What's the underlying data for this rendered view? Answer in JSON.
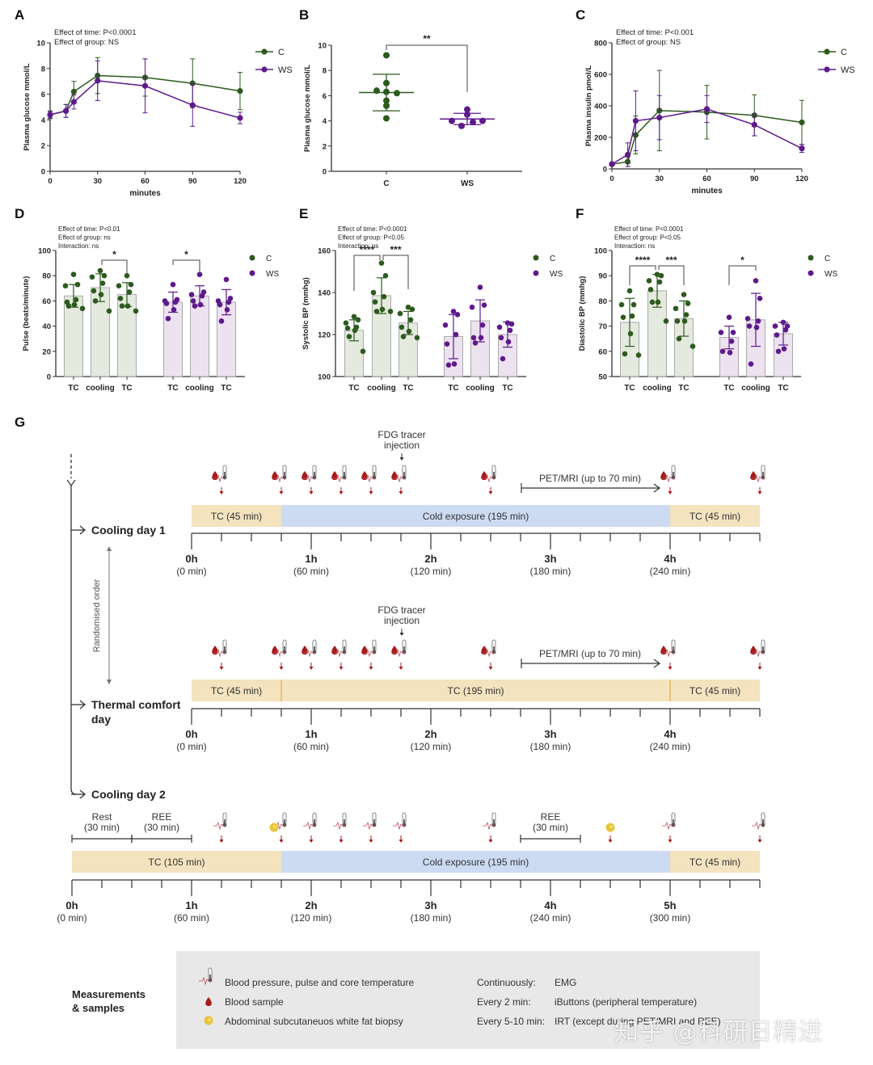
{
  "colors": {
    "C": "#2d5a1e",
    "WS": "#5e1a8c",
    "C_bar_fill": "#e4eade",
    "WS_bar_fill": "#ece2f0",
    "tc_band": "#f3e3bf",
    "cold_band": "#ccdbf2",
    "blood": "#a61b1b",
    "biopsy": "#e8c43a",
    "legend_box": "#e8e8e8"
  },
  "chart_data": [
    {
      "panel": "A",
      "type": "line",
      "annotations": [
        "Effect of time: P<0.0001",
        "Effect of group: NS"
      ],
      "xlabel": "minutes",
      "ylabel": "Plasma glucose mmol/L",
      "x": [
        0,
        10,
        15,
        30,
        60,
        90,
        120
      ],
      "xticks": [
        0,
        30,
        60,
        90,
        120
      ],
      "yticks": [
        0,
        2,
        4,
        6,
        8,
        10
      ],
      "ylim": [
        0,
        10
      ],
      "xlim": [
        0,
        120
      ],
      "legend": "right",
      "series": [
        {
          "name": "C",
          "values": [
            4.4,
            4.7,
            6.2,
            7.45,
            7.3,
            6.85,
            6.25
          ],
          "err": [
            0.3,
            0.5,
            0.8,
            1.4,
            1.45,
            1.9,
            1.45
          ]
        },
        {
          "name": "WS",
          "values": [
            4.4,
            4.7,
            5.4,
            7.05,
            6.65,
            5.15,
            4.15
          ],
          "err": [
            0.25,
            0.5,
            0.55,
            1.55,
            2.1,
            1.65,
            0.45
          ]
        }
      ]
    },
    {
      "panel": "B",
      "type": "scatter",
      "ylabel": "Plasma glucose mmol/L",
      "categories": [
        "C",
        "WS"
      ],
      "yticks": [
        0,
        2,
        4,
        6,
        8,
        10
      ],
      "ylim": [
        0,
        10
      ],
      "significance": "**",
      "series": [
        {
          "name": "C",
          "points": [
            9.2,
            7.0,
            6.4,
            6.3,
            6.2,
            5.6,
            5.2,
            4.2
          ],
          "mean": 6.25,
          "sd": 1.45
        },
        {
          "name": "WS",
          "points": [
            4.9,
            4.5,
            4.0,
            4.0,
            3.9,
            3.6
          ],
          "mean": 4.15,
          "sd": 0.45
        }
      ]
    },
    {
      "panel": "C",
      "type": "line",
      "annotations": [
        "Effect of time: P<0.001",
        "Effect of group: NS"
      ],
      "xlabel": "minutes",
      "ylabel": "Plasma insulin pmol/L",
      "x": [
        0,
        10,
        15,
        30,
        60,
        90,
        120
      ],
      "xticks": [
        0,
        30,
        60,
        90,
        120
      ],
      "yticks": [
        0,
        200,
        400,
        600,
        800
      ],
      "ylim": [
        0,
        800
      ],
      "xlim": [
        0,
        120
      ],
      "legend": "right",
      "series": [
        {
          "name": "C",
          "values": [
            30,
            45,
            215,
            370,
            360,
            340,
            295
          ],
          "err": [
            10,
            30,
            120,
            255,
            170,
            130,
            140
          ]
        },
        {
          "name": "WS",
          "values": [
            30,
            90,
            305,
            325,
            380,
            280,
            130
          ],
          "err": [
            10,
            75,
            190,
            140,
            85,
            70,
            25
          ]
        }
      ]
    },
    {
      "panel": "D",
      "type": "bar",
      "annotations": [
        "Effect of time: P<0.01",
        "Effect of group: ns",
        "Interaction: ns"
      ],
      "ylabel": "Pulse (beats/minute)",
      "categories": [
        "TC",
        "cooling",
        "TC",
        "TC",
        "cooling",
        "TC"
      ],
      "yticks": [
        0,
        20,
        40,
        60,
        80,
        100
      ],
      "ylim": [
        0,
        100
      ],
      "legend": "right",
      "significance": [
        {
          "from": 1,
          "to": 2,
          "label": "*"
        },
        {
          "from": 3,
          "to": 4,
          "label": "*"
        }
      ],
      "series": [
        {
          "name": "C",
          "bars": [
            {
              "mean": 64,
              "sd": 9,
              "points": [
                81,
                73,
                72,
                61,
                59,
                57,
                56,
                54
              ]
            },
            {
              "mean": 70.5,
              "sd": 11,
              "points": [
                84,
                80,
                79,
                74,
                68,
                65,
                60,
                52
              ]
            },
            {
              "mean": 65,
              "sd": 9.5,
              "points": [
                80,
                73,
                72,
                67,
                62,
                56,
                56,
                52
              ]
            }
          ]
        },
        {
          "name": "WS",
          "bars": [
            {
              "mean": 59,
              "sd": 8,
              "points": [
                73,
                61,
                60,
                59,
                58,
                53,
                46
              ]
            },
            {
              "mean": 64,
              "sd": 8,
              "points": [
                81,
                67,
                65,
                64,
                60,
                57,
                56
              ]
            },
            {
              "mean": 59,
              "sd": 10,
              "points": [
                77,
                62,
                60,
                59,
                57,
                53,
                44
              ]
            }
          ]
        }
      ]
    },
    {
      "panel": "E",
      "type": "bar",
      "annotations": [
        "Effect of time: P<0.0001",
        "Effect of group: P<0.05",
        "Interaction: ns"
      ],
      "ylabel": "Systolic BP (mmhg)",
      "categories": [
        "TC",
        "cooling",
        "TC",
        "TC",
        "cooling",
        "TC"
      ],
      "yticks": [
        100,
        120,
        140,
        160
      ],
      "ylim": [
        100,
        160
      ],
      "legend": "right",
      "significance": [
        {
          "from": 0,
          "to": 1,
          "label": "****"
        },
        {
          "from": 1,
          "to": 2,
          "label": "***"
        }
      ],
      "series": [
        {
          "name": "C",
          "bars": [
            {
              "mean": 122,
              "sd": 5,
              "points": [
                128.5,
                127,
                125.5,
                123.5,
                123,
                122,
                119,
                112
              ]
            },
            {
              "mean": 138.5,
              "sd": 8.5,
              "points": [
                154,
                148,
                140,
                138,
                135.5,
                132,
                131,
                131
              ]
            },
            {
              "mean": 125.5,
              "sd": 5.5,
              "points": [
                133,
                132,
                130,
                127,
                123.5,
                121.5,
                119,
                118.5
              ]
            }
          ]
        },
        {
          "name": "WS",
          "bars": [
            {
              "mean": 119,
              "sd": 10.5,
              "points": [
                131,
                129.5,
                124.5,
                120,
                115.5,
                106,
                105.5
              ]
            },
            {
              "mean": 126.5,
              "sd": 10,
              "points": [
                142.5,
                134,
                133,
                124.5,
                118.5,
                118.5,
                116
              ]
            },
            {
              "mean": 120,
              "sd": 6,
              "points": [
                125.5,
                125,
                123.5,
                122,
                118.5,
                116.5,
                108.5
              ]
            }
          ]
        }
      ]
    },
    {
      "panel": "F",
      "type": "bar",
      "annotations": [
        "Effect of time: P<0.0001",
        "Effect of group: P<0.05",
        "Interaction: ns"
      ],
      "ylabel": "Diastolic BP (mmhg)",
      "categories": [
        "TC",
        "cooling",
        "TC",
        "TC",
        "cooling",
        "TC"
      ],
      "yticks": [
        50,
        60,
        70,
        80,
        90,
        100
      ],
      "ylim": [
        50,
        100
      ],
      "legend": "right",
      "significance": [
        {
          "from": 0,
          "to": 1,
          "label": "****"
        },
        {
          "from": 1,
          "to": 2,
          "label": "***"
        },
        {
          "from": 3,
          "to": 4,
          "label": "*"
        }
      ],
      "series": [
        {
          "name": "C",
          "bars": [
            {
              "mean": 71.5,
              "sd": 9.5,
              "points": [
                84,
                78.5,
                78.5,
                74,
                73.5,
                67,
                59,
                58.5
              ]
            },
            {
              "mean": 84,
              "sd": 6.5,
              "points": [
                90.5,
                90,
                88,
                87.5,
                84.5,
                79.5,
                79.5,
                72
              ]
            },
            {
              "mean": 73,
              "sd": 7,
              "points": [
                82.5,
                79,
                77,
                74.5,
                72,
                72,
                65,
                62
              ]
            }
          ]
        },
        {
          "name": "WS",
          "bars": [
            {
              "mean": 65.5,
              "sd": 4.5,
              "points": [
                73.5,
                67.5,
                67.5,
                64,
                60,
                59.5
              ]
            },
            {
              "mean": 72.5,
              "sd": 10.5,
              "points": [
                88,
                81,
                73,
                72,
                70,
                69.5,
                55
              ]
            },
            {
              "mean": 67,
              "sd": 4.5,
              "points": [
                71.5,
                70,
                70,
                68.5,
                66.5,
                61,
                60
              ]
            }
          ]
        }
      ]
    }
  ],
  "panel_labels": [
    "A",
    "B",
    "C",
    "D",
    "E",
    "F",
    "G"
  ],
  "timeline": {
    "randomised_label": "Randomised order",
    "fdg_label_line1": "FDG tracer",
    "fdg_label_line2": "injection",
    "pet_label": "PET/MRI (up to 70 min)",
    "days": [
      {
        "name": "Cooling day 1",
        "bands": [
          {
            "label": "TC (45 min)",
            "type": "tc",
            "start": 0,
            "end": 45
          },
          {
            "label": "Cold exposure (195 min)",
            "type": "cold",
            "start": 45,
            "end": 240
          },
          {
            "label": "TC (45 min)",
            "type": "tc",
            "start": 240,
            "end": 285
          }
        ],
        "ticks": [
          {
            "h": "0h",
            "m": "(0 min)",
            "min": 0
          },
          {
            "h": "1h",
            "m": "(60 min)",
            "min": 60
          },
          {
            "h": "2h",
            "m": "(120 min)",
            "min": 120
          },
          {
            "h": "3h",
            "m": "(180 min)",
            "min": 180
          },
          {
            "h": "4h",
            "m": "(240 min)",
            "min": 240
          }
        ],
        "samples_min": [
          15,
          45,
          60,
          75,
          90,
          105,
          150,
          240,
          285
        ]
      },
      {
        "name_line1": "Thermal comfort",
        "name_line2": "day",
        "bands": [
          {
            "label": "TC (45 min)",
            "type": "tc",
            "start": 0,
            "end": 45
          },
          {
            "label": "TC (195 min)",
            "type": "tc",
            "start": 45,
            "end": 240
          },
          {
            "label": "TC (45 min)",
            "type": "tc",
            "start": 240,
            "end": 285
          }
        ],
        "ticks": [
          {
            "h": "0h",
            "m": "(0 min)",
            "min": 0
          },
          {
            "h": "1h",
            "m": "(60 min)",
            "min": 60
          },
          {
            "h": "2h",
            "m": "(120 min)",
            "min": 120
          },
          {
            "h": "3h",
            "m": "(180 min)",
            "min": 180
          },
          {
            "h": "4h",
            "m": "(240 min)",
            "min": 240
          }
        ],
        "samples_min": [
          15,
          45,
          60,
          75,
          90,
          105,
          150,
          240,
          285
        ]
      },
      {
        "name": "Cooling day 2",
        "rest_label_line1": "Rest",
        "rest_label_line2": "(30 min)",
        "ree_label_line1": "REE",
        "ree_label_line2": "(30 min)",
        "bands": [
          {
            "label": "TC (105 min)",
            "type": "tc",
            "start": 0,
            "end": 105
          },
          {
            "label": "Cold exposure (195 min)",
            "type": "cold",
            "start": 105,
            "end": 300
          },
          {
            "label": "TC (45 min)",
            "type": "tc",
            "start": 300,
            "end": 345
          }
        ],
        "ticks": [
          {
            "h": "0h",
            "m": "(0 min)",
            "min": 0
          },
          {
            "h": "1h",
            "m": "(60 min)",
            "min": 60
          },
          {
            "h": "2h",
            "m": "(120 min)",
            "min": 120
          },
          {
            "h": "3h",
            "m": "(180 min)",
            "min": 180
          },
          {
            "h": "4h",
            "m": "(240 min)",
            "min": 240
          },
          {
            "h": "5h",
            "m": "(300 min)",
            "min": 300
          }
        ],
        "vitals_min": [
          75,
          105,
          120,
          135,
          150,
          165,
          210,
          300,
          345
        ],
        "biopsy_min": [
          105,
          270
        ]
      }
    ]
  },
  "legend_box": {
    "title_line1": "Measurements",
    "title_line2": "& samples",
    "items": [
      {
        "icon": "vitals-thermometer-icon",
        "label": "Blood pressure, pulse and core temperature"
      },
      {
        "icon": "blood-drop-icon",
        "label": "Blood sample"
      },
      {
        "icon": "fat-biopsy-icon",
        "label": "Abdominal subcutaneuos white fat biopsy"
      }
    ],
    "schedule": [
      {
        "when": "Continuously:",
        "what": "EMG"
      },
      {
        "when": "Every 2 min:",
        "what": "iButtons (peripheral temperature)"
      },
      {
        "when": "Every 5-10 min:",
        "what": "IRT (except during PET/MRI and REE)"
      }
    ]
  },
  "watermark": "知乎 @科研日精进"
}
